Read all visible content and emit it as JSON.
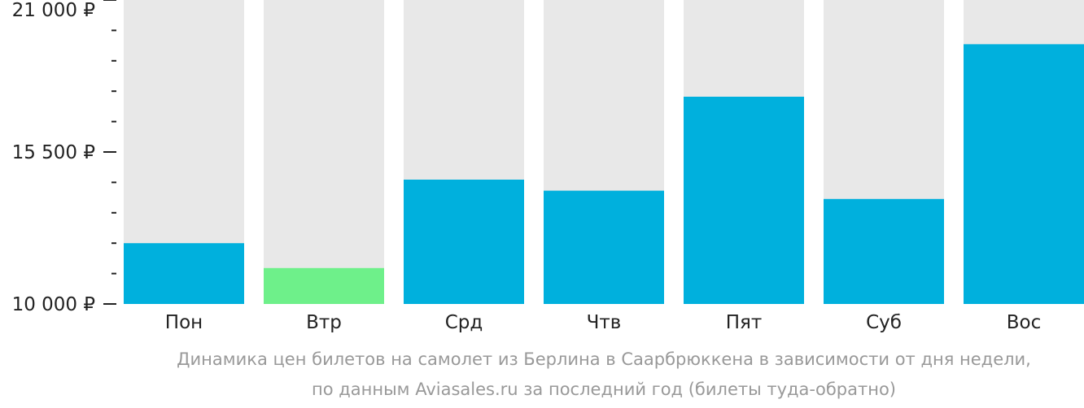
{
  "chart_data": {
    "type": "bar",
    "categories": [
      "Пон",
      "Втр",
      "Срд",
      "Чтв",
      "Пят",
      "Суб",
      "Вос"
    ],
    "values": [
      12200,
      11300,
      14500,
      14100,
      17500,
      13800,
      19400
    ],
    "highlight_index": 1,
    "ylim": [
      10000,
      21000
    ],
    "y_ticks": [
      {
        "value": 10000,
        "label": "10 000 ₽"
      },
      {
        "value": 15500,
        "label": "15 500 ₽"
      },
      {
        "value": 21000,
        "label": "21 000 ₽"
      }
    ],
    "minor_tick_values": [
      11100,
      12200,
      13300,
      14400,
      16600,
      17700,
      18800,
      19900
    ],
    "grid": false,
    "legend": "none",
    "colors": {
      "bar": "#00b0dd",
      "bar_highlight": "#6ef08a",
      "bar_background": "#e8e8e8",
      "axis_text": "#222222",
      "caption": "#999999"
    }
  },
  "caption": {
    "line1": "Динамика цен билетов на самолет из Берлина в Саарбрюккена в зависимости от дня недели,",
    "line2": "по данным Aviasales.ru за последний год (билеты туда-обратно)"
  }
}
